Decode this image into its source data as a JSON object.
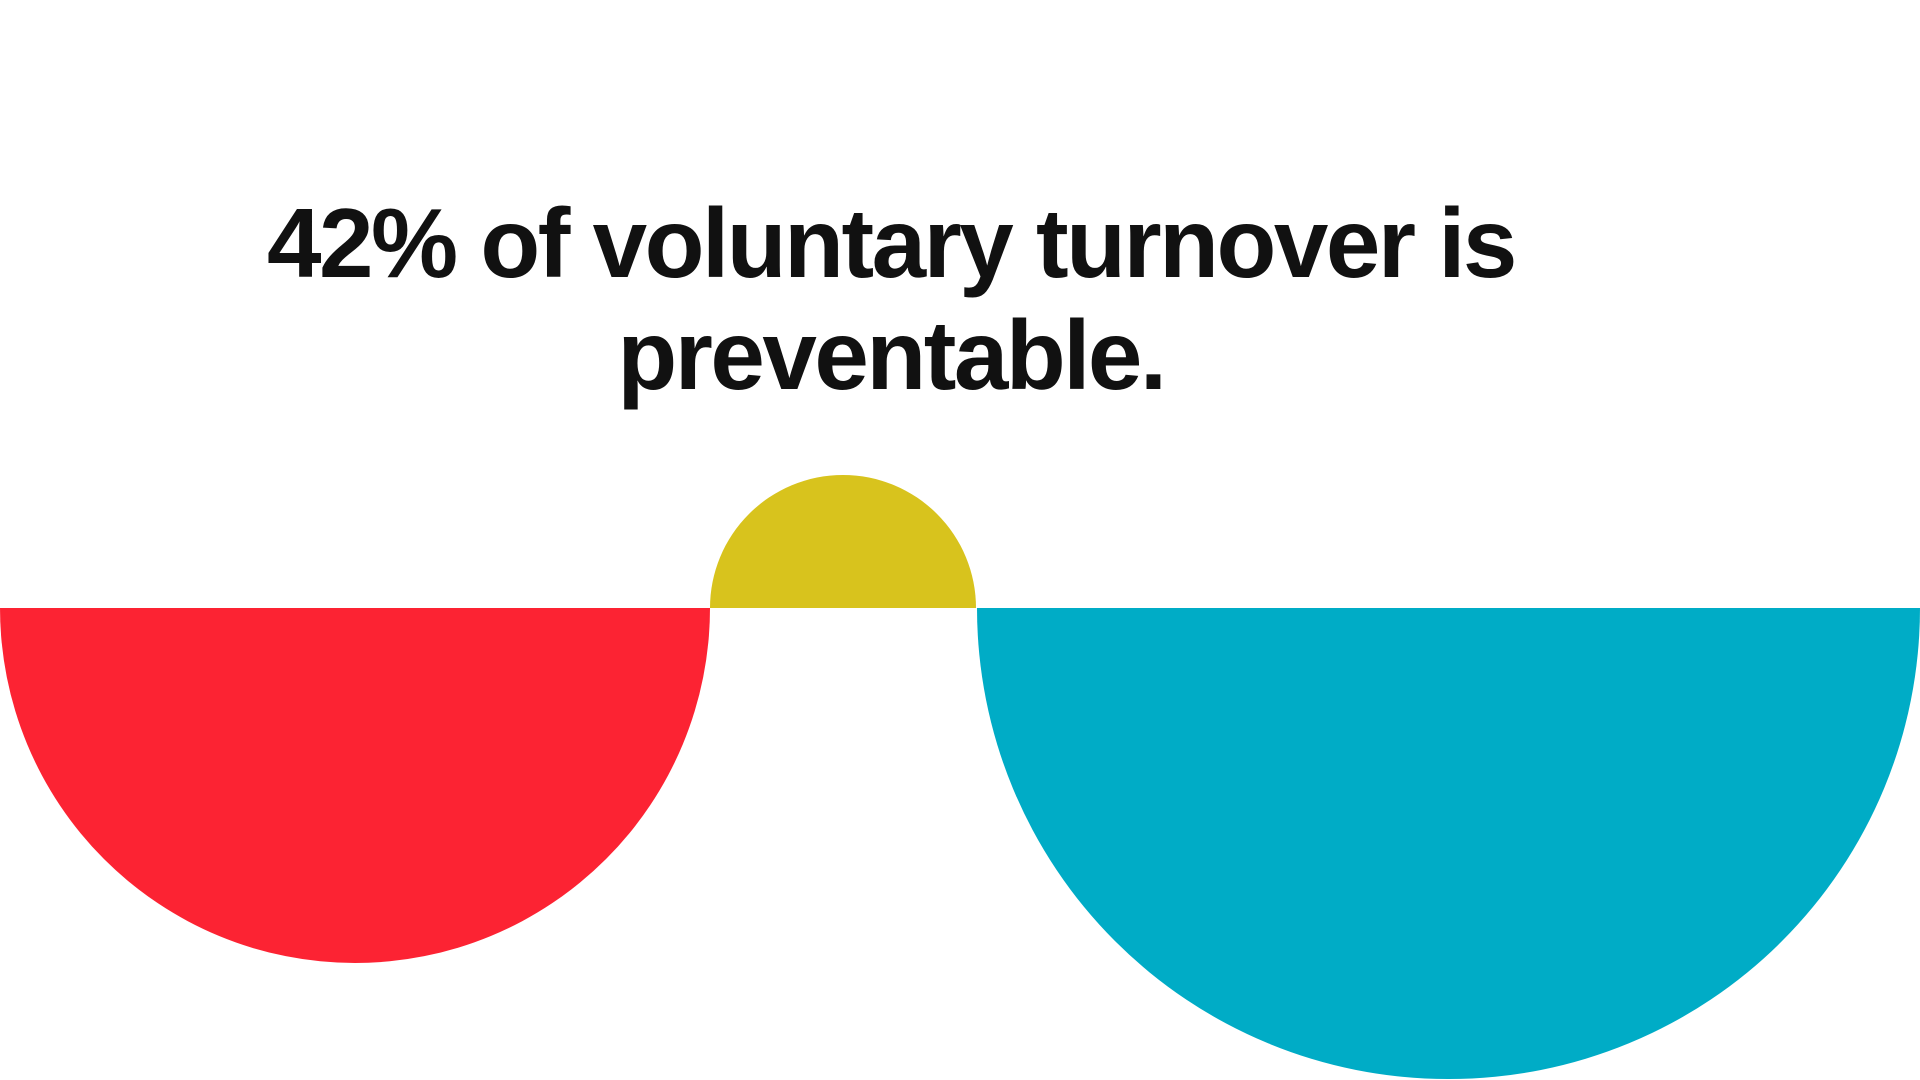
{
  "headline": {
    "line1": "42% of voluntary turnover is",
    "line2": "preventable."
  },
  "stat": {
    "value": "42%",
    "description": "of voluntary turnover is preventable"
  },
  "colors": {
    "background": "#FFFFFF",
    "text": "#111111",
    "red": "#FC2333",
    "yellow": "#D8C31D",
    "teal": "#00ACC6"
  },
  "shapes": [
    {
      "name": "red-half-disc",
      "type": "semicircle-down",
      "color_key": "red"
    },
    {
      "name": "yellow-half-disc",
      "type": "semicircle-up",
      "color_key": "yellow"
    },
    {
      "name": "teal-half-disc",
      "type": "semicircle-down",
      "color_key": "teal"
    }
  ]
}
